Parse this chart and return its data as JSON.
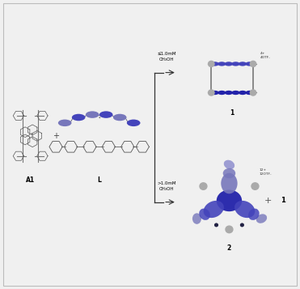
{
  "bg_color": "#f0f0f0",
  "border_color": "#bbbbbb",
  "blue_dark": "#2222aa",
  "blue_mid": "#4444bb",
  "blue_light": "#6666cc",
  "blue_pale": "#8888cc",
  "blue_lavender": "#7777bb",
  "blue_blob1": "#5555bb",
  "blue_blob2": "#6666cc",
  "blue_blob3": "#4444aa",
  "gray_metal": "#888888",
  "gray_light": "#aaaaaa",
  "gray_mid": "#999999",
  "label_A1": "A1",
  "label_L": "L",
  "label_1": "1",
  "label_2": "2",
  "cond_upper": "≤1.0mM\nCH₃OH",
  "cond_lower": ">1.0mM\nCH₃OH",
  "annotation_upper": "4+\n4OTF-",
  "annotation_lower": "12+\n12OTF-",
  "plus_sign": "+",
  "fig_width": 3.71,
  "fig_height": 3.57,
  "dpi": 100
}
